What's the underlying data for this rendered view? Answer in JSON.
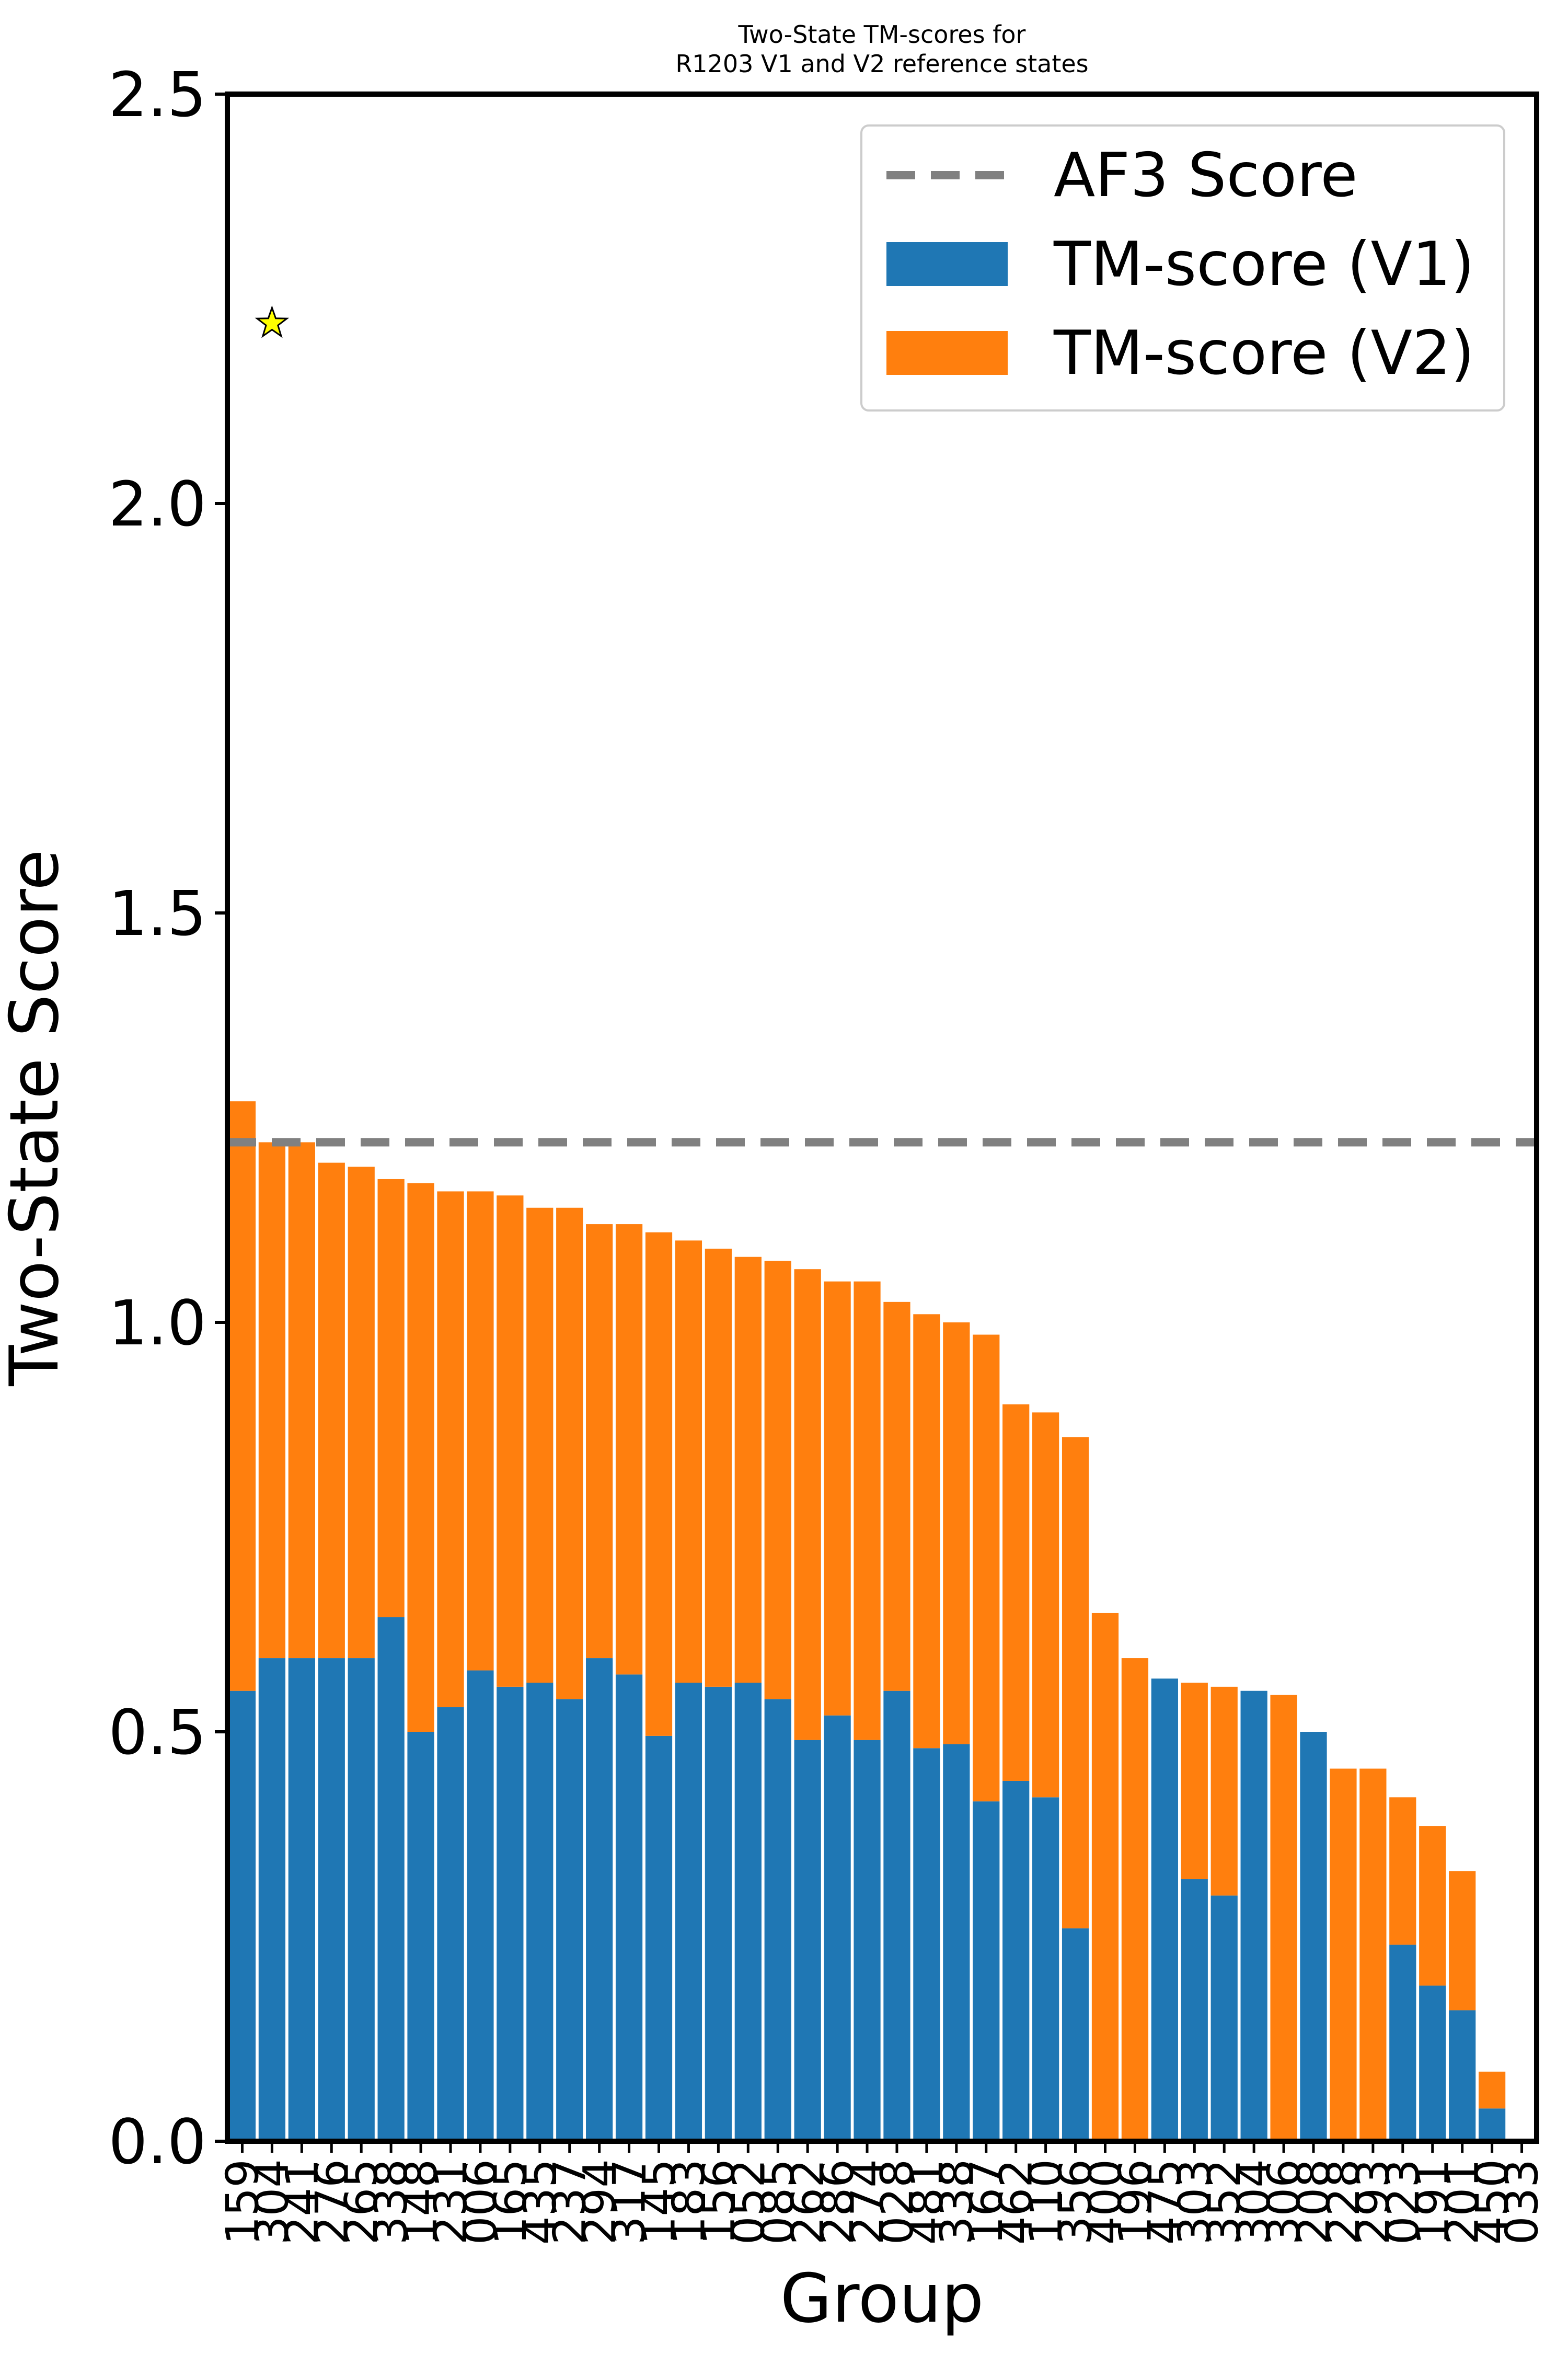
{
  "chart_data": {
    "type": "bar",
    "stacked": true,
    "title": "Two-State TM-scores for\nR1203 V1 and V2 reference states",
    "xlabel": "Group",
    "ylabel": "Two-State Score",
    "ylim": [
      0,
      2.5
    ],
    "yticks": [
      0.0,
      0.5,
      1.0,
      1.5,
      2.0,
      2.5
    ],
    "ytick_labels": [
      "0.0",
      "0.5",
      "1.0",
      "1.5",
      "2.0",
      "2.5"
    ],
    "grid": false,
    "legend_position": "top-right",
    "categories": [
      "159",
      "304",
      "241",
      "276",
      "265",
      "338",
      "148",
      "231",
      "006",
      "165",
      "435",
      "237",
      "294",
      "317",
      "145",
      "183",
      "156",
      "052",
      "085",
      "262",
      "286",
      "274",
      "028",
      "481",
      "338",
      "167",
      "462",
      "110",
      "356",
      "400",
      "196",
      "475",
      "303",
      "352",
      "304",
      "306",
      "208",
      "228",
      "293",
      "023",
      "191",
      "201",
      "450",
      "033"
    ],
    "series": [
      {
        "name": "TM-score (V1)",
        "color": "#1f77b4",
        "values": [
          0.55,
          0.59,
          0.59,
          0.59,
          0.59,
          0.64,
          0.5,
          0.53,
          0.575,
          0.555,
          0.56,
          0.54,
          0.59,
          0.57,
          0.495,
          0.56,
          0.555,
          0.56,
          0.54,
          0.49,
          0.52,
          0.49,
          0.55,
          0.48,
          0.485,
          0.415,
          0.44,
          0.42,
          0.26,
          0.0,
          0.0,
          0.565,
          0.32,
          0.3,
          0.55,
          0.0,
          0.5,
          0.0,
          0.0,
          0.24,
          0.19,
          0.16,
          0.04,
          0.0
        ]
      },
      {
        "name": "TM-score (V2)",
        "color": "#ff7f0e",
        "values": [
          0.72,
          0.63,
          0.63,
          0.605,
          0.6,
          0.535,
          0.67,
          0.63,
          0.585,
          0.6,
          0.58,
          0.6,
          0.53,
          0.55,
          0.615,
          0.54,
          0.535,
          0.52,
          0.535,
          0.575,
          0.53,
          0.56,
          0.475,
          0.53,
          0.515,
          0.57,
          0.46,
          0.47,
          0.6,
          0.645,
          0.59,
          0.0,
          0.24,
          0.255,
          0.0,
          0.545,
          0.0,
          0.455,
          0.455,
          0.18,
          0.195,
          0.17,
          0.045,
          0.0
        ]
      }
    ],
    "reference_line": {
      "name": "AF3 Score",
      "value": 1.22,
      "color": "#808080",
      "style": "dashed"
    },
    "marker": {
      "type": "star",
      "category_index": 1,
      "value": 2.22,
      "color": "#ffff00"
    }
  }
}
